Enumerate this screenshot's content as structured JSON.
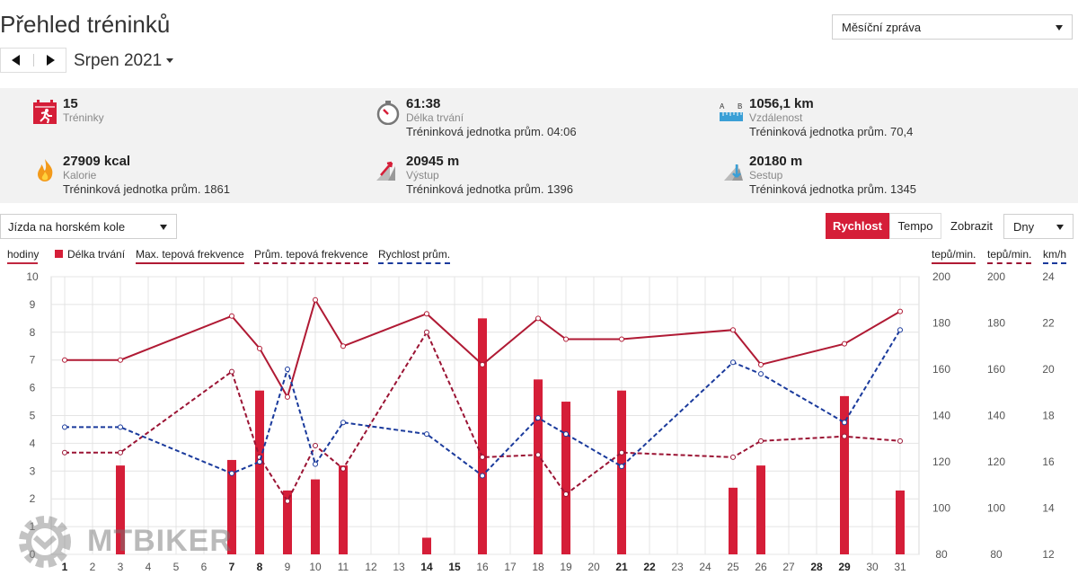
{
  "header": {
    "title": "Přehled tréninků",
    "report_type": "Měsíční zpráva",
    "period": "Srpen 2021"
  },
  "stats": [
    {
      "icon": "calendar-run-icon",
      "value": "15",
      "label": "Tréninky",
      "avg": ""
    },
    {
      "icon": "stopwatch-icon",
      "value": "61:38",
      "label": "Délka trvání",
      "avg": "Tréninková jednotka prům. 04:06"
    },
    {
      "icon": "ruler-distance-icon",
      "value": "1056,1 km",
      "label": "Vzdálenost",
      "avg": "Tréninková jednotka prům. 70,4"
    },
    {
      "icon": "flame-icon",
      "value": "27909 kcal",
      "label": "Kalorie",
      "avg": "Tréninková jednotka prům. 1861"
    },
    {
      "icon": "ascent-icon",
      "value": "20945 m",
      "label": "Výstup",
      "avg": "Tréninková jednotka prům. 1396"
    },
    {
      "icon": "descent-icon",
      "value": "20180 m",
      "label": "Sestup",
      "avg": "Tréninková jednotka prům. 1345"
    }
  ],
  "icon_letters": {
    "a": "A",
    "b": "B"
  },
  "controls": {
    "sport": "Jízda na horském kole",
    "speed": "Rychlost",
    "pace": "Tempo",
    "show_label": "Zobrazit",
    "granularity": "Dny"
  },
  "legend": {
    "hours_axis": "hodiny",
    "duration": "Délka trvání",
    "max_hr": "Max. tepová frekvence",
    "avg_hr": "Prům. tepová frekvence",
    "avg_speed": "Rychlost prům.",
    "hr_unit": "tepů/min.",
    "hr_unit2": "tepů/min.",
    "speed_unit": "km/h"
  },
  "colors": {
    "accent": "#d51e38",
    "max_hr": "#b01a34",
    "avg_hr": "#9b1434",
    "speed": "#1a3a9c",
    "grid": "#e4e4e4"
  },
  "watermark": {
    "text": "MTBIKER"
  },
  "chart_data": {
    "type": "bar",
    "x": [
      1,
      2,
      3,
      4,
      5,
      6,
      7,
      8,
      9,
      10,
      11,
      12,
      13,
      14,
      15,
      16,
      17,
      18,
      19,
      20,
      21,
      22,
      23,
      24,
      25,
      26,
      27,
      28,
      29,
      30,
      31
    ],
    "bold_days": [
      1,
      7,
      8,
      14,
      15,
      21,
      22,
      28,
      29
    ],
    "axes": {
      "hours": {
        "label": "hodiny",
        "ylim": [
          0,
          10
        ],
        "ticks": [
          0,
          1,
          2,
          3,
          4,
          5,
          6,
          7,
          8,
          9,
          10
        ]
      },
      "hr": {
        "label": "tepů/min.",
        "ylim": [
          80,
          200
        ],
        "ticks": [
          80,
          100,
          120,
          140,
          160,
          180,
          200
        ]
      },
      "speed": {
        "label": "km/h",
        "ylim": [
          12,
          24
        ],
        "ticks": [
          12,
          14,
          16,
          18,
          20,
          22,
          24
        ]
      }
    },
    "duration_hours": [
      {
        "x": 3,
        "y": 3.2
      },
      {
        "x": 7,
        "y": 3.4
      },
      {
        "x": 8,
        "y": 5.9
      },
      {
        "x": 9,
        "y": 2.3
      },
      {
        "x": 10,
        "y": 2.7
      },
      {
        "x": 11,
        "y": 3.2
      },
      {
        "x": 14,
        "y": 0.6
      },
      {
        "x": 16,
        "y": 8.5
      },
      {
        "x": 18,
        "y": 6.3
      },
      {
        "x": 19,
        "y": 5.5
      },
      {
        "x": 21,
        "y": 5.9
      },
      {
        "x": 25,
        "y": 2.4
      },
      {
        "x": 26,
        "y": 3.2
      },
      {
        "x": 29,
        "y": 5.7
      },
      {
        "x": 31,
        "y": 2.3
      }
    ],
    "series": [
      {
        "name": "Max. tepová frekvence",
        "axis": "hr",
        "style": "solid",
        "points": [
          [
            1,
            164
          ],
          [
            3,
            164
          ],
          [
            7,
            183
          ],
          [
            8,
            169
          ],
          [
            9,
            148
          ],
          [
            10,
            190
          ],
          [
            11,
            170
          ],
          [
            14,
            184
          ],
          [
            16,
            162
          ],
          [
            18,
            182
          ],
          [
            19,
            173
          ],
          [
            21,
            173
          ],
          [
            25,
            177
          ],
          [
            26,
            162
          ],
          [
            29,
            171
          ],
          [
            31,
            185
          ]
        ]
      },
      {
        "name": "Prům. tepová frekvence",
        "axis": "hr",
        "style": "dashed",
        "points": [
          [
            1,
            124
          ],
          [
            3,
            124
          ],
          [
            7,
            159
          ],
          [
            8,
            122
          ],
          [
            9,
            103
          ],
          [
            10,
            127
          ],
          [
            11,
            117
          ],
          [
            14,
            176
          ],
          [
            16,
            122
          ],
          [
            18,
            123
          ],
          [
            19,
            106
          ],
          [
            21,
            124
          ],
          [
            25,
            122
          ],
          [
            26,
            129
          ],
          [
            29,
            131
          ],
          [
            31,
            129
          ]
        ]
      },
      {
        "name": "Rychlost prům.",
        "axis": "speed",
        "style": "dashed",
        "points": [
          [
            1,
            17.5
          ],
          [
            3,
            17.5
          ],
          [
            7,
            15.5
          ],
          [
            8,
            16
          ],
          [
            9,
            20.0
          ],
          [
            10,
            15.9
          ],
          [
            11,
            17.7
          ],
          [
            14,
            17.2
          ],
          [
            16,
            15.4
          ],
          [
            18,
            17.9
          ],
          [
            19,
            17.2
          ],
          [
            21,
            15.8
          ],
          [
            25,
            20.3
          ],
          [
            26,
            19.8
          ],
          [
            29,
            17.7
          ],
          [
            31,
            21.7
          ]
        ]
      }
    ]
  }
}
